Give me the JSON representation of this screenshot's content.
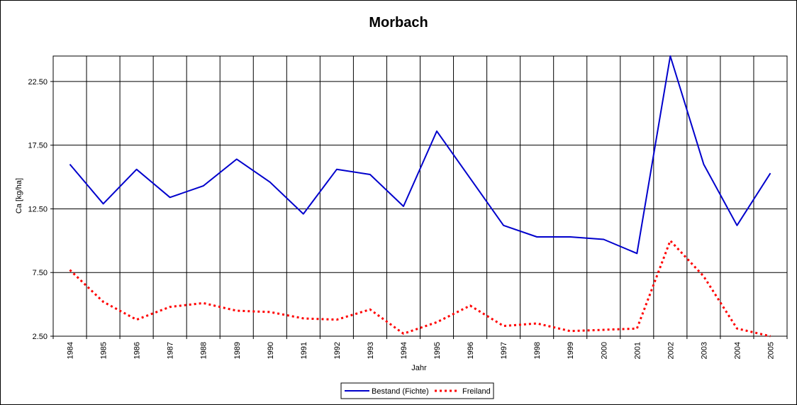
{
  "chart_data": {
    "type": "line",
    "title": "Morbach",
    "xlabel": "Jahr",
    "ylabel": "Ca [kg/ha]",
    "ylim": [
      2.5,
      24.5
    ],
    "yticks": [
      2.5,
      7.5,
      12.5,
      17.5,
      22.5
    ],
    "ytick_labels": [
      "2.50",
      "7.50",
      "12.50",
      "17.50",
      "22.50"
    ],
    "grid": true,
    "legend_position": "bottom-center",
    "categories": [
      "1984",
      "1985",
      "1986",
      "1987",
      "1988",
      "1989",
      "1990",
      "1991",
      "1992",
      "1993",
      "1994",
      "1995",
      "1996",
      "1997",
      "1998",
      "1999",
      "2000",
      "2001",
      "2002",
      "2003",
      "2004",
      "2005"
    ],
    "series": [
      {
        "name": "Bestand (Fichte)",
        "color": "#0000cc",
        "style": "solid",
        "values": [
          16.0,
          12.9,
          15.6,
          13.4,
          14.3,
          16.4,
          14.6,
          12.1,
          15.6,
          15.2,
          12.7,
          18.6,
          14.9,
          11.2,
          10.3,
          10.3,
          10.1,
          9.0,
          24.5,
          16.0,
          11.2,
          15.3
        ]
      },
      {
        "name": "Freiland",
        "color": "#ff0000",
        "style": "dotted",
        "values": [
          7.7,
          5.2,
          3.8,
          4.8,
          5.1,
          4.5,
          4.4,
          3.9,
          3.8,
          4.6,
          2.7,
          3.6,
          4.9,
          3.3,
          3.5,
          2.9,
          3.0,
          3.1,
          10.0,
          7.2,
          3.1,
          2.5
        ]
      }
    ]
  }
}
